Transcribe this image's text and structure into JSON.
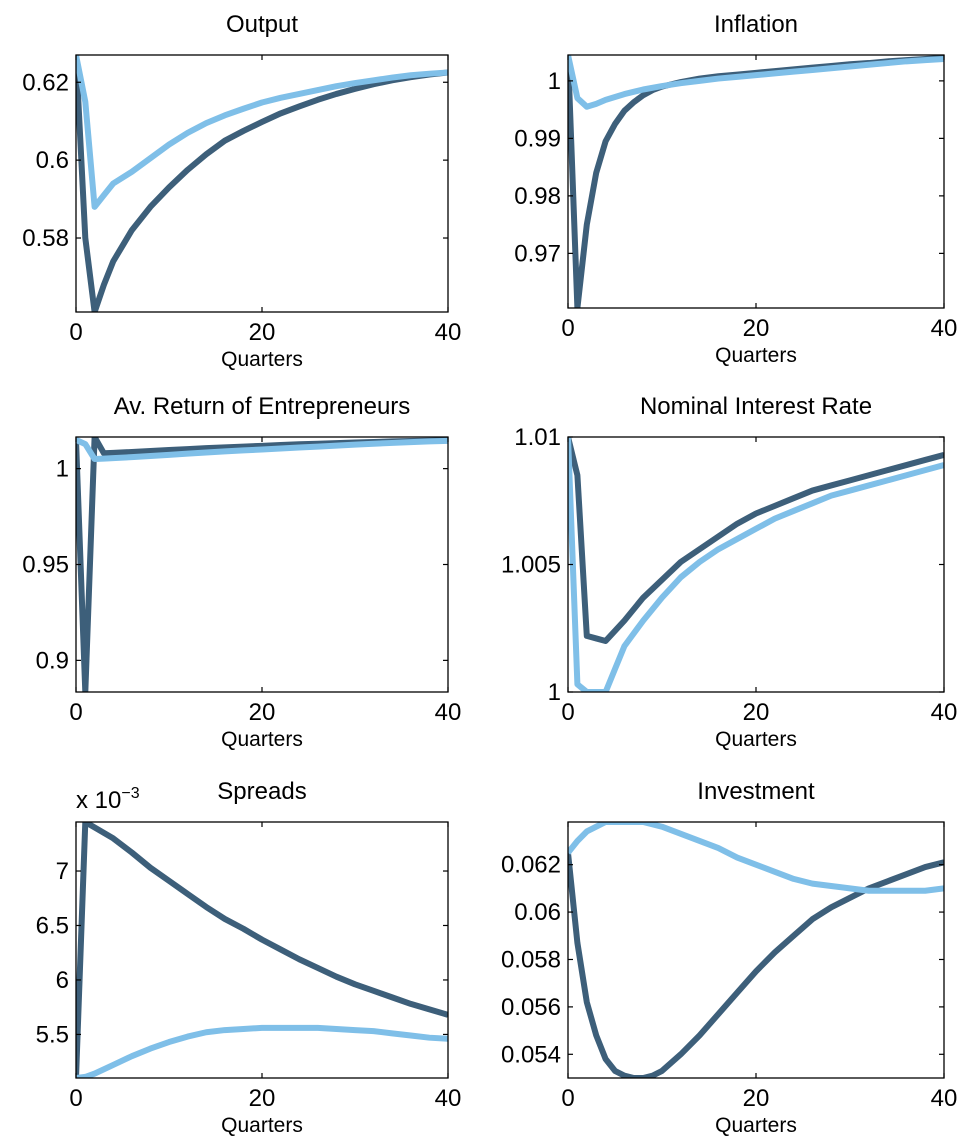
{
  "colors": {
    "dark_series": "#3d5f7a",
    "light_series": "#7fbfe8"
  },
  "chart_data": [
    {
      "type": "line",
      "title": "Output",
      "xlabel": "Quarters",
      "xlim": [
        0,
        40
      ],
      "ylim": [
        0.561,
        0.627
      ],
      "xticks": [
        0,
        20,
        40
      ],
      "yticks": [
        0.58,
        0.6,
        0.62
      ],
      "ytick_labels": [
        "0.58",
        "0.6",
        "0.62"
      ],
      "exponent_label": "",
      "series": [
        {
          "color": "#3d5f7a",
          "x": [
            0,
            1,
            2,
            3,
            4,
            6,
            8,
            10,
            12,
            14,
            16,
            18,
            20,
            22,
            24,
            26,
            28,
            30,
            32,
            34,
            36,
            38,
            40
          ],
          "y": [
            0.627,
            0.58,
            0.561,
            0.568,
            0.574,
            0.582,
            0.588,
            0.593,
            0.5975,
            0.6015,
            0.605,
            0.6075,
            0.6098,
            0.612,
            0.6138,
            0.6155,
            0.617,
            0.6183,
            0.6195,
            0.6205,
            0.6213,
            0.622,
            0.6225
          ]
        },
        {
          "color": "#7fbfe8",
          "x": [
            0,
            1,
            2,
            3,
            4,
            6,
            8,
            10,
            12,
            14,
            16,
            18,
            20,
            22,
            24,
            26,
            28,
            30,
            32,
            34,
            36,
            38,
            40
          ],
          "y": [
            0.627,
            0.615,
            0.588,
            0.591,
            0.594,
            0.597,
            0.6005,
            0.604,
            0.607,
            0.6095,
            0.6115,
            0.6132,
            0.6148,
            0.616,
            0.617,
            0.618,
            0.619,
            0.6198,
            0.6205,
            0.6212,
            0.6218,
            0.6222,
            0.6225
          ]
        }
      ]
    },
    {
      "type": "line",
      "title": "Inflation",
      "xlabel": "Quarters",
      "xlim": [
        0,
        40
      ],
      "ylim": [
        0.9605,
        1.0045
      ],
      "xticks": [
        0,
        20,
        40
      ],
      "yticks": [
        0.97,
        0.98,
        0.99,
        1
      ],
      "ytick_labels": [
        "0.97",
        "0.98",
        "0.99",
        "1"
      ],
      "exponent_label": "",
      "series": [
        {
          "color": "#3d5f7a",
          "x": [
            0,
            1,
            2,
            3,
            4,
            5,
            6,
            7,
            8,
            9,
            10,
            12,
            14,
            16,
            18,
            20,
            22,
            24,
            26,
            28,
            30,
            32,
            34,
            36,
            38,
            40
          ],
          "y": [
            1.0045,
            0.9605,
            0.975,
            0.984,
            0.9895,
            0.9925,
            0.9948,
            0.9963,
            0.9975,
            0.9984,
            0.999,
            0.9998,
            1.0004,
            1.0008,
            1.0011,
            1.0014,
            1.0017,
            1.002,
            1.0023,
            1.0026,
            1.0029,
            1.0031,
            1.0034,
            1.0036,
            1.0038,
            1.004
          ]
        },
        {
          "color": "#7fbfe8",
          "x": [
            0,
            1,
            2,
            3,
            4,
            5,
            6,
            8,
            10,
            12,
            14,
            16,
            18,
            20,
            22,
            24,
            26,
            28,
            30,
            32,
            34,
            36,
            38,
            40
          ],
          "y": [
            1.0045,
            0.997,
            0.9955,
            0.996,
            0.9967,
            0.9972,
            0.9977,
            0.9985,
            0.9991,
            0.9996,
            1.0,
            1.0004,
            1.0007,
            1.001,
            1.0013,
            1.0016,
            1.0019,
            1.0022,
            1.0025,
            1.0028,
            1.0031,
            1.0034,
            1.0036,
            1.0038
          ]
        }
      ]
    },
    {
      "type": "line",
      "title": "Av. Return of Entrepreneurs",
      "xlabel": "Quarters",
      "xlim": [
        0,
        40
      ],
      "ylim": [
        0.8835,
        1.0165
      ],
      "xticks": [
        0,
        20,
        40
      ],
      "yticks": [
        0.9,
        0.95,
        1
      ],
      "ytick_labels": [
        "0.9",
        "0.95",
        "1"
      ],
      "exponent_label": "",
      "series": [
        {
          "color": "#3d5f7a",
          "x": [
            0,
            1,
            2,
            3,
            4,
            6,
            8,
            10,
            12,
            14,
            16,
            18,
            20,
            22,
            24,
            26,
            28,
            30,
            32,
            34,
            36,
            38,
            40
          ],
          "y": [
            1.015,
            0.8835,
            1.0165,
            1.008,
            1.0082,
            1.0087,
            1.0092,
            1.0097,
            1.0102,
            1.0107,
            1.0111,
            1.0115,
            1.0119,
            1.0123,
            1.0127,
            1.013,
            1.0133,
            1.0136,
            1.0139,
            1.0142,
            1.0144,
            1.0146,
            1.0148
          ]
        },
        {
          "color": "#7fbfe8",
          "x": [
            0,
            1,
            2,
            3,
            4,
            6,
            8,
            10,
            12,
            14,
            16,
            18,
            20,
            22,
            24,
            26,
            28,
            30,
            32,
            34,
            36,
            38,
            40
          ],
          "y": [
            1.015,
            1.0128,
            1.005,
            1.0052,
            1.0055,
            1.006,
            1.0066,
            1.0072,
            1.0078,
            1.0084,
            1.009,
            1.0095,
            1.01,
            1.0105,
            1.011,
            1.0115,
            1.012,
            1.0125,
            1.013,
            1.0134,
            1.0138,
            1.0142,
            1.0145
          ]
        }
      ]
    },
    {
      "type": "line",
      "title": "Nominal Interest Rate",
      "xlabel": "Quarters",
      "xlim": [
        0,
        40
      ],
      "ylim": [
        1.0,
        1.01
      ],
      "xticks": [
        0,
        20,
        40
      ],
      "yticks": [
        1,
        1.005,
        1.01
      ],
      "ytick_labels": [
        "1",
        "1.005",
        "1.01"
      ],
      "exponent_label": "",
      "series": [
        {
          "color": "#3d5f7a",
          "x": [
            0,
            1,
            2,
            3,
            4,
            6,
            8,
            10,
            12,
            14,
            16,
            18,
            20,
            22,
            24,
            26,
            28,
            30,
            32,
            34,
            36,
            38,
            40
          ],
          "y": [
            1.01,
            1.0085,
            1.0022,
            1.0021,
            1.002,
            1.0028,
            1.0037,
            1.0044,
            1.0051,
            1.0056,
            1.0061,
            1.0066,
            1.007,
            1.0073,
            1.0076,
            1.0079,
            1.0081,
            1.0083,
            1.0085,
            1.0087,
            1.0089,
            1.0091,
            1.0093
          ]
        },
        {
          "color": "#7fbfe8",
          "x": [
            0,
            1,
            2,
            3,
            4,
            5,
            6,
            8,
            10,
            12,
            14,
            16,
            18,
            20,
            22,
            24,
            26,
            28,
            30,
            32,
            34,
            36,
            38,
            40
          ],
          "y": [
            1.01,
            1.0003,
            1.0,
            1.0,
            1.0,
            1.0009,
            1.0018,
            1.0028,
            1.0037,
            1.0045,
            1.0051,
            1.0056,
            1.006,
            1.0064,
            1.0068,
            1.0071,
            1.0074,
            1.0077,
            1.0079,
            1.0081,
            1.0083,
            1.0085,
            1.0087,
            1.0089
          ]
        }
      ]
    },
    {
      "type": "line",
      "title": "Spreads",
      "xlabel": "Quarters",
      "xlim": [
        0,
        40
      ],
      "ylim": [
        5.1,
        7.45
      ],
      "xticks": [
        0,
        20,
        40
      ],
      "yticks": [
        5.5,
        6,
        6.5,
        7
      ],
      "ytick_labels": [
        "5.5",
        "6",
        "6.5",
        "7"
      ],
      "exponent_label": "x 10",
      "exponent_power": "−3",
      "series": [
        {
          "color": "#3d5f7a",
          "x": [
            0,
            1,
            2,
            4,
            6,
            8,
            10,
            12,
            14,
            16,
            18,
            20,
            22,
            24,
            26,
            28,
            30,
            32,
            34,
            36,
            38,
            40
          ],
          "y": [
            5.1,
            7.45,
            7.4,
            7.3,
            7.17,
            7.03,
            6.91,
            6.79,
            6.67,
            6.56,
            6.47,
            6.37,
            6.28,
            6.19,
            6.11,
            6.03,
            5.96,
            5.9,
            5.84,
            5.78,
            5.73,
            5.68
          ]
        },
        {
          "color": "#7fbfe8",
          "x": [
            0,
            1,
            2,
            4,
            6,
            8,
            10,
            12,
            14,
            16,
            18,
            20,
            22,
            24,
            26,
            28,
            30,
            32,
            34,
            36,
            38,
            40
          ],
          "y": [
            5.1,
            5.11,
            5.14,
            5.22,
            5.3,
            5.37,
            5.43,
            5.48,
            5.52,
            5.54,
            5.55,
            5.56,
            5.56,
            5.56,
            5.56,
            5.55,
            5.54,
            5.53,
            5.51,
            5.49,
            5.47,
            5.46
          ]
        }
      ]
    },
    {
      "type": "line",
      "title": "Investment",
      "xlabel": "Quarters",
      "xlim": [
        0,
        40
      ],
      "ylim": [
        0.053,
        0.0638
      ],
      "xticks": [
        0,
        20,
        40
      ],
      "yticks": [
        0.054,
        0.056,
        0.058,
        0.06,
        0.062
      ],
      "ytick_labels": [
        "0.054",
        "0.056",
        "0.058",
        "0.06",
        "0.062"
      ],
      "exponent_label": "",
      "series": [
        {
          "color": "#3d5f7a",
          "x": [
            0,
            1,
            2,
            3,
            4,
            5,
            6,
            7,
            8,
            9,
            10,
            12,
            14,
            16,
            18,
            20,
            22,
            24,
            26,
            28,
            30,
            32,
            34,
            36,
            38,
            40
          ],
          "y": [
            0.0625,
            0.0587,
            0.0562,
            0.0548,
            0.0538,
            0.0533,
            0.0531,
            0.053,
            0.053,
            0.0531,
            0.0533,
            0.054,
            0.0548,
            0.0557,
            0.0566,
            0.0575,
            0.0583,
            0.059,
            0.0597,
            0.0602,
            0.0606,
            0.061,
            0.0613,
            0.0616,
            0.0619,
            0.0621
          ]
        },
        {
          "color": "#7fbfe8",
          "x": [
            0,
            1,
            2,
            3,
            4,
            5,
            6,
            8,
            10,
            12,
            14,
            16,
            18,
            20,
            22,
            24,
            26,
            28,
            30,
            32,
            34,
            36,
            38,
            40
          ],
          "y": [
            0.0625,
            0.063,
            0.0634,
            0.0636,
            0.0638,
            0.0638,
            0.0638,
            0.0638,
            0.0636,
            0.0633,
            0.063,
            0.0627,
            0.0623,
            0.062,
            0.0617,
            0.0614,
            0.0612,
            0.0611,
            0.061,
            0.0609,
            0.0609,
            0.0609,
            0.0609,
            0.061
          ]
        }
      ]
    }
  ]
}
